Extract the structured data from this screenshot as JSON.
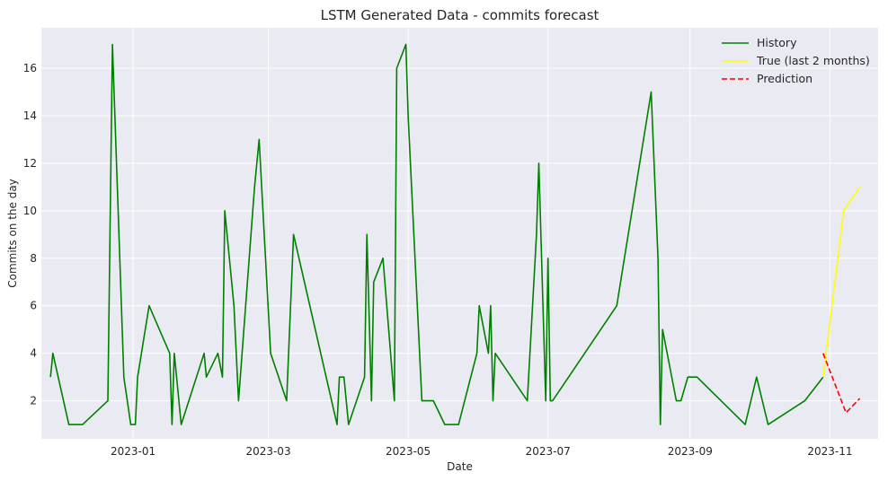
{
  "chart_data": {
    "type": "line",
    "title": "LSTM Generated Data - commits forecast",
    "xlabel": "Date",
    "ylabel": "Commits on the day",
    "xlim": [
      "2022-11-22",
      "2023-11-22"
    ],
    "ylim": [
      0.4,
      17.7
    ],
    "x_ticks": [
      "2023-01",
      "2023-03",
      "2023-05",
      "2023-07",
      "2023-09",
      "2023-11"
    ],
    "y_ticks": [
      2,
      4,
      6,
      8,
      10,
      12,
      14,
      16
    ],
    "grid": true,
    "legend_position": "top-right",
    "series": [
      {
        "name": "History",
        "color": "#008000",
        "style": "solid",
        "points": [
          [
            "2022-11-26",
            3
          ],
          [
            "2022-11-27",
            4
          ],
          [
            "2022-12-04",
            1
          ],
          [
            "2022-12-10",
            1
          ],
          [
            "2022-12-21",
            2
          ],
          [
            "2022-12-23",
            17
          ],
          [
            "2022-12-28",
            3
          ],
          [
            "2022-12-31",
            1
          ],
          [
            "2023-01-02",
            1
          ],
          [
            "2023-01-03",
            3
          ],
          [
            "2023-01-08",
            6
          ],
          [
            "2023-01-17",
            4
          ],
          [
            "2023-01-18",
            1
          ],
          [
            "2023-01-19",
            4
          ],
          [
            "2023-01-22",
            1
          ],
          [
            "2023-02-01",
            4
          ],
          [
            "2023-02-02",
            3
          ],
          [
            "2023-02-07",
            4
          ],
          [
            "2023-02-09",
            3
          ],
          [
            "2023-02-10",
            10
          ],
          [
            "2023-02-14",
            6
          ],
          [
            "2023-02-16",
            2
          ],
          [
            "2023-02-23",
            11
          ],
          [
            "2023-02-25",
            13
          ],
          [
            "2023-03-02",
            4
          ],
          [
            "2023-03-09",
            2
          ],
          [
            "2023-03-12",
            9
          ],
          [
            "2023-03-31",
            1
          ],
          [
            "2023-04-01",
            3
          ],
          [
            "2023-04-03",
            3
          ],
          [
            "2023-04-05",
            1
          ],
          [
            "2023-04-12",
            3
          ],
          [
            "2023-04-13",
            9
          ],
          [
            "2023-04-15",
            2
          ],
          [
            "2023-04-16",
            7
          ],
          [
            "2023-04-20",
            8
          ],
          [
            "2023-04-25",
            2
          ],
          [
            "2023-04-26",
            16
          ],
          [
            "2023-04-30",
            17
          ],
          [
            "2023-05-01",
            14
          ],
          [
            "2023-05-07",
            2
          ],
          [
            "2023-05-12",
            2
          ],
          [
            "2023-05-17",
            1
          ],
          [
            "2023-05-23",
            1
          ],
          [
            "2023-05-31",
            4
          ],
          [
            "2023-06-01",
            6
          ],
          [
            "2023-06-05",
            4
          ],
          [
            "2023-06-06",
            6
          ],
          [
            "2023-06-07",
            2
          ],
          [
            "2023-06-08",
            4
          ],
          [
            "2023-06-22",
            2
          ],
          [
            "2023-06-26",
            9
          ],
          [
            "2023-06-27",
            12
          ],
          [
            "2023-06-30",
            2
          ],
          [
            "2023-07-01",
            8
          ],
          [
            "2023-07-02",
            2
          ],
          [
            "2023-07-03",
            2
          ],
          [
            "2023-07-31",
            6
          ],
          [
            "2023-08-15",
            15
          ],
          [
            "2023-08-18",
            8
          ],
          [
            "2023-08-19",
            1
          ],
          [
            "2023-08-20",
            5
          ],
          [
            "2023-08-26",
            2
          ],
          [
            "2023-08-28",
            2
          ],
          [
            "2023-08-31",
            3
          ],
          [
            "2023-09-04",
            3
          ],
          [
            "2023-09-25",
            1
          ],
          [
            "2023-09-30",
            3
          ],
          [
            "2023-10-05",
            1
          ],
          [
            "2023-10-21",
            2
          ],
          [
            "2023-10-29",
            3
          ]
        ]
      },
      {
        "name": "True (last 2 months)",
        "color": "#ffff00",
        "style": "solid",
        "points": [
          [
            "2023-10-29",
            3
          ],
          [
            "2023-11-07",
            10
          ],
          [
            "2023-11-14",
            11
          ]
        ]
      },
      {
        "name": "Prediction",
        "color": "#ff0000",
        "style": "dashed",
        "points": [
          [
            "2023-10-29",
            4
          ],
          [
            "2023-11-08",
            1.5
          ],
          [
            "2023-11-14",
            2.1
          ]
        ]
      }
    ]
  }
}
